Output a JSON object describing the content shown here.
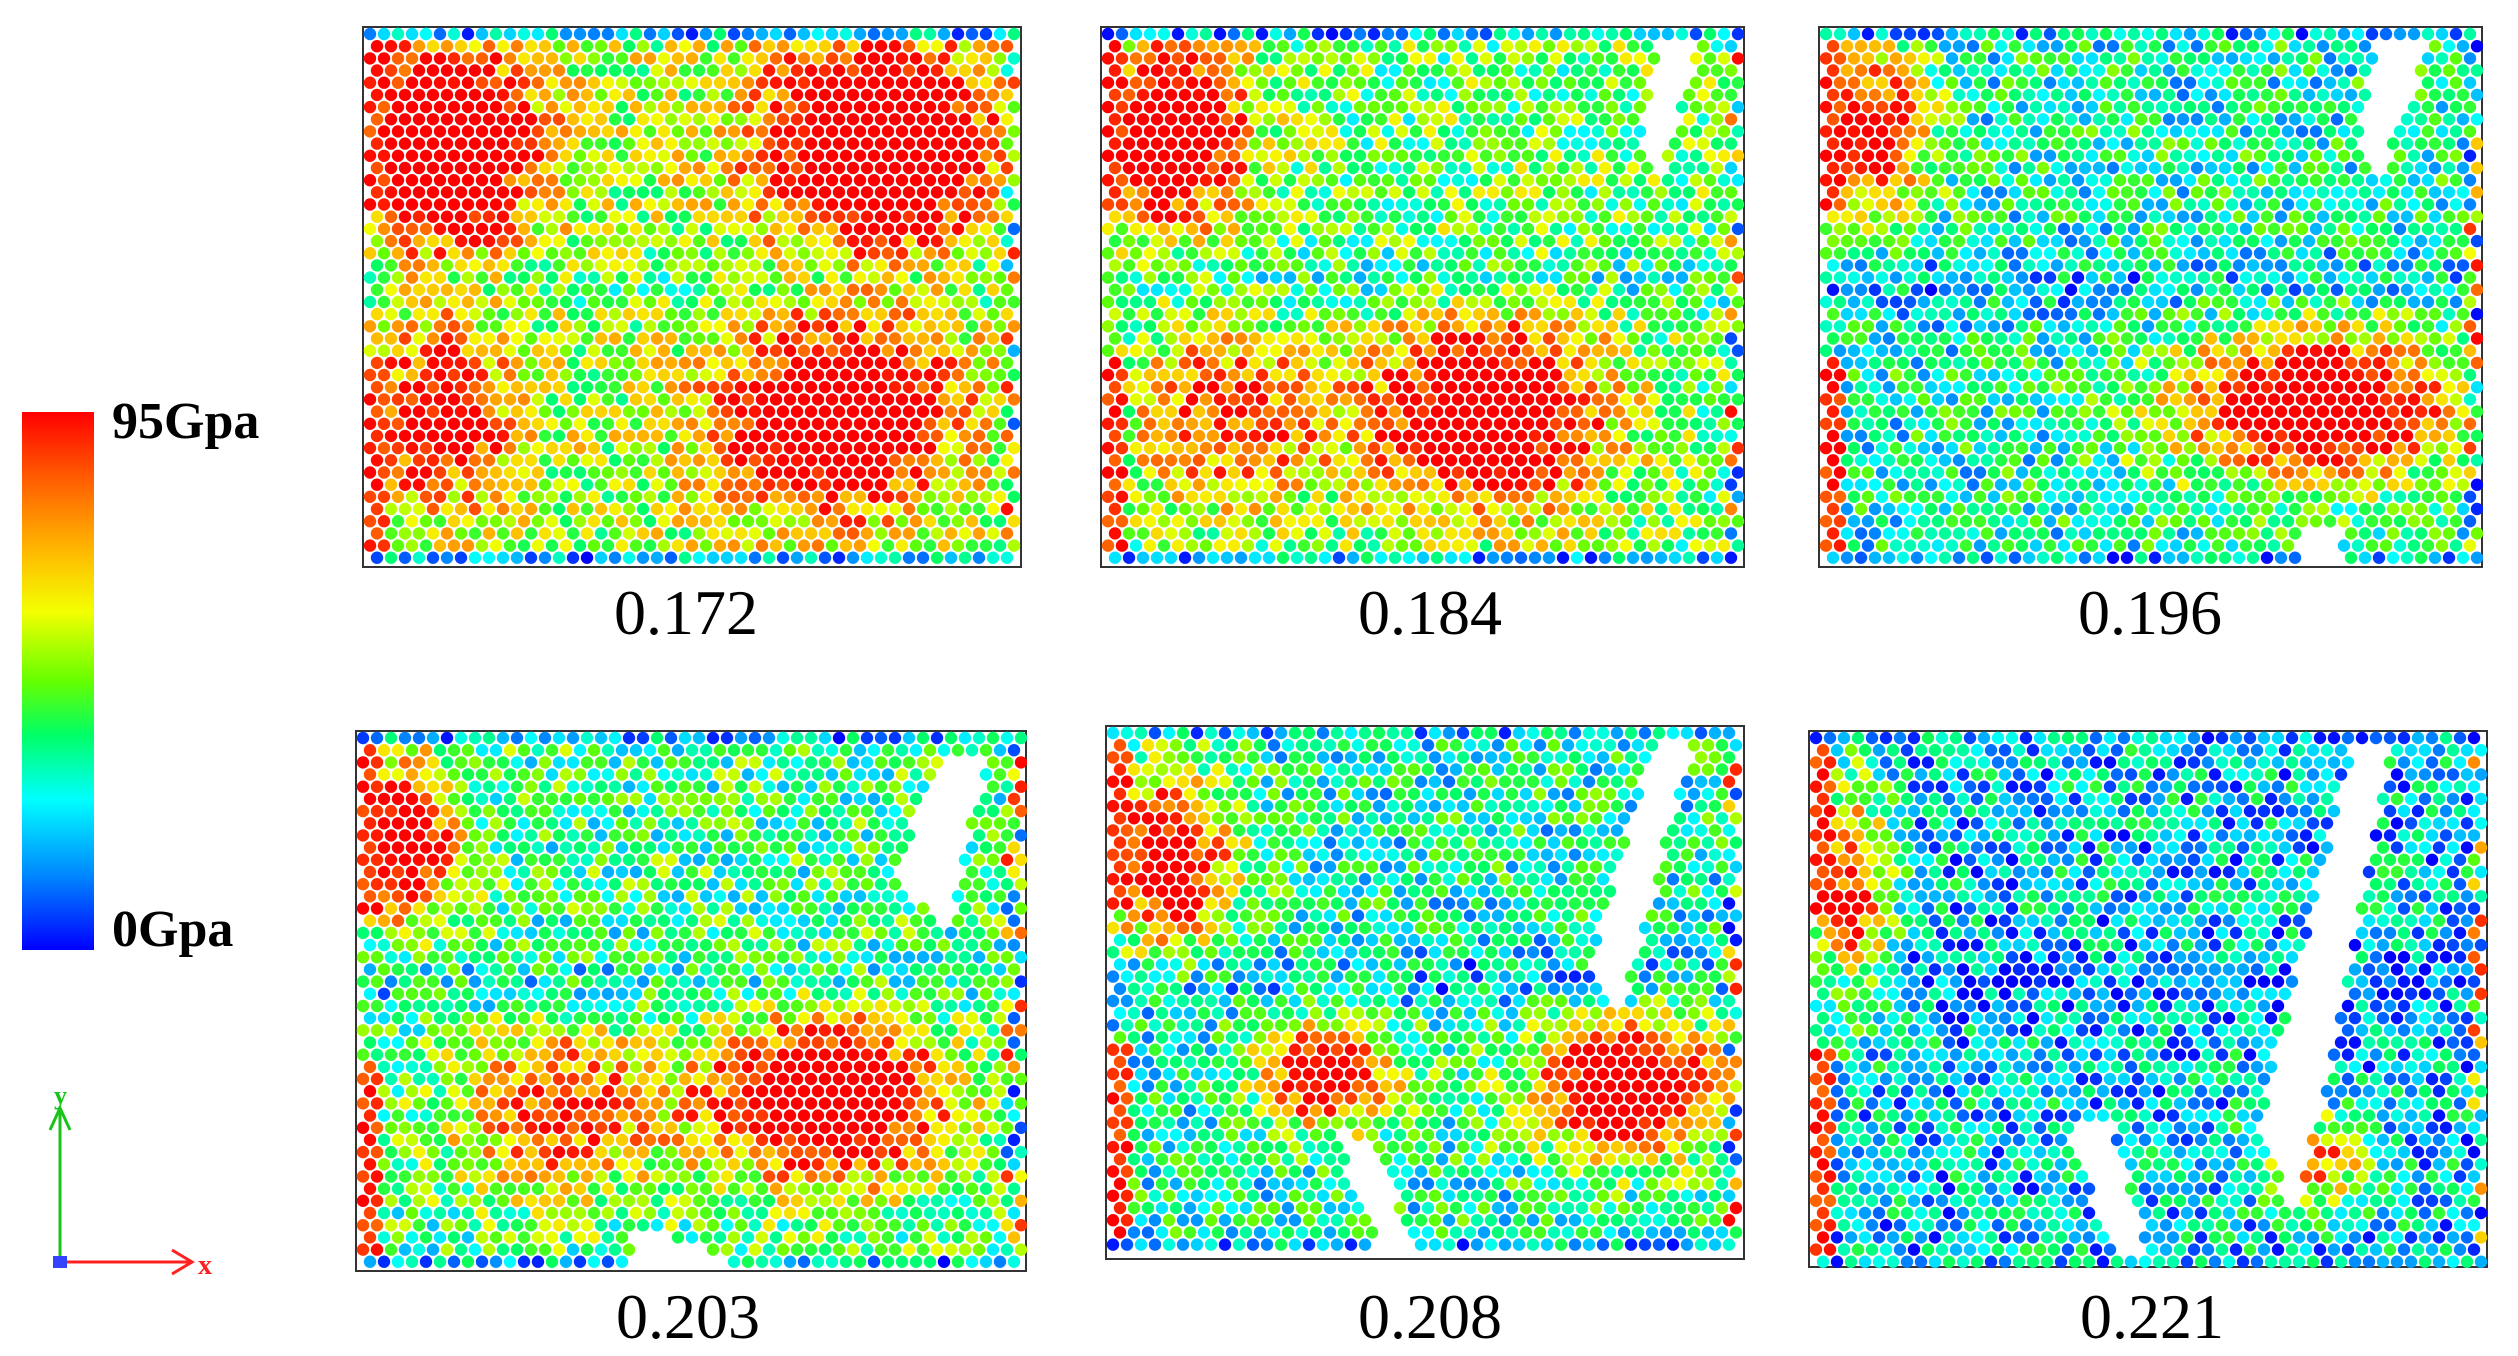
{
  "legend": {
    "max_label": "95Gpa",
    "min_label": "0Gpa",
    "gradient_stops": [
      "#ff0000",
      "#ff5a00",
      "#ffb300",
      "#f4ff00",
      "#66ff00",
      "#00ff66",
      "#00ffff",
      "#0088ff",
      "#0000ff"
    ]
  },
  "axes": {
    "y_label": "y",
    "x_label": "x",
    "y_color": "#19c419",
    "x_color": "#ff2020"
  },
  "panels": [
    {
      "caption": "0.172"
    },
    {
      "caption": "0.184"
    },
    {
      "caption": "0.196"
    },
    {
      "caption": "0.203"
    },
    {
      "caption": "0.208"
    },
    {
      "caption": "0.221"
    }
  ]
}
